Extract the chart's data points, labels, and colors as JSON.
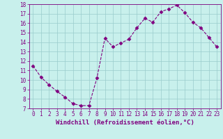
{
  "x": [
    0,
    1,
    2,
    3,
    4,
    5,
    6,
    7,
    8,
    9,
    10,
    11,
    12,
    13,
    14,
    15,
    16,
    17,
    18,
    19,
    20,
    21,
    22,
    23
  ],
  "y": [
    11.5,
    10.3,
    9.5,
    8.8,
    8.2,
    7.5,
    7.3,
    7.3,
    10.2,
    14.4,
    13.5,
    13.9,
    14.3,
    15.5,
    16.5,
    16.1,
    17.2,
    17.5,
    17.9,
    17.1,
    16.1,
    15.5,
    14.5,
    13.5
  ],
  "xlabel": "Windchill (Refroidissement éolien,°C)",
  "line_color": "#800080",
  "marker_color": "#800080",
  "bg_color": "#c8f0ec",
  "grid_color": "#99cccc",
  "ylim": [
    7,
    18
  ],
  "xlim_min": -0.5,
  "xlim_max": 23.5,
  "yticks": [
    7,
    8,
    9,
    10,
    11,
    12,
    13,
    14,
    15,
    16,
    17,
    18
  ],
  "xticks": [
    0,
    1,
    2,
    3,
    4,
    5,
    6,
    7,
    8,
    9,
    10,
    11,
    12,
    13,
    14,
    15,
    16,
    17,
    18,
    19,
    20,
    21,
    22,
    23
  ],
  "tick_color": "#800080",
  "label_color": "#800080",
  "fontsize_label": 6.5,
  "fontsize_tick": 5.5,
  "linewidth": 0.8,
  "markersize": 2.5
}
